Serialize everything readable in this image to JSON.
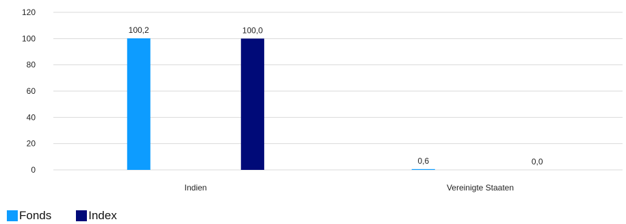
{
  "chart_data": {
    "type": "bar",
    "categories": [
      "Indien",
      "Vereinigte Staaten"
    ],
    "series": [
      {
        "name": "Fonds",
        "values": [
          100.2,
          0.6
        ],
        "labels": [
          "100,2",
          "0,6"
        ],
        "color": "#0d9cff"
      },
      {
        "name": "Index",
        "values": [
          100.0,
          0.0
        ],
        "labels": [
          "100,0",
          "0,0"
        ],
        "color": "#000a78"
      }
    ],
    "yticks": [
      "0",
      "20",
      "40",
      "60",
      "80",
      "100",
      "120"
    ],
    "ylim": [
      0,
      120
    ],
    "grid": true,
    "legend_position": "bottom-left"
  }
}
